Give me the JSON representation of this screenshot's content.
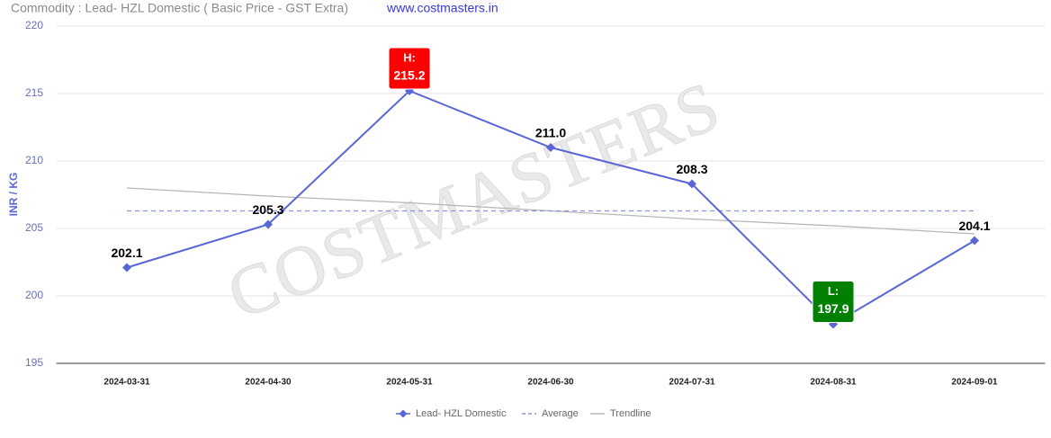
{
  "chart_data": {
    "type": "line",
    "title": "Commodity : Lead- HZL Domestic ( Basic Price - GST Extra)",
    "subtitle": "www.costmasters.in",
    "watermark": "COSTMASTERS",
    "y_label": "INR / KG",
    "categories": [
      "2024-03-31",
      "2024-04-30",
      "2024-05-31",
      "2024-06-30",
      "2024-07-31",
      "2024-08-31",
      "2024-09-01"
    ],
    "series": [
      {
        "name": "Lead- HZL Domestic",
        "color": "#5a66d6",
        "style": "solid",
        "markers": true,
        "values": [
          202.1,
          205.3,
          215.2,
          211.0,
          208.3,
          197.9,
          204.1
        ],
        "value_labels": [
          "202.1",
          "205.3",
          "215.2",
          "211.0",
          "208.3",
          "197.9",
          "204.1"
        ]
      },
      {
        "name": "Average",
        "color": "#8a93e0",
        "style": "dashed",
        "markers": false,
        "values": [
          206.3,
          206.3,
          206.3,
          206.3,
          206.3,
          206.3,
          206.3
        ]
      },
      {
        "name": "Trendline",
        "color": "#b5b5b5",
        "style": "solid",
        "markers": false,
        "values": [
          208.0,
          207.4,
          206.9,
          206.3,
          205.7,
          205.2,
          204.6
        ]
      }
    ],
    "high_label": "H:",
    "low_label": "L:",
    "high_color": "#ff0000",
    "low_color": "#008000",
    "ylim": [
      195,
      220
    ],
    "yticks": [
      195,
      200,
      205,
      210,
      215,
      220
    ],
    "grid": true
  }
}
